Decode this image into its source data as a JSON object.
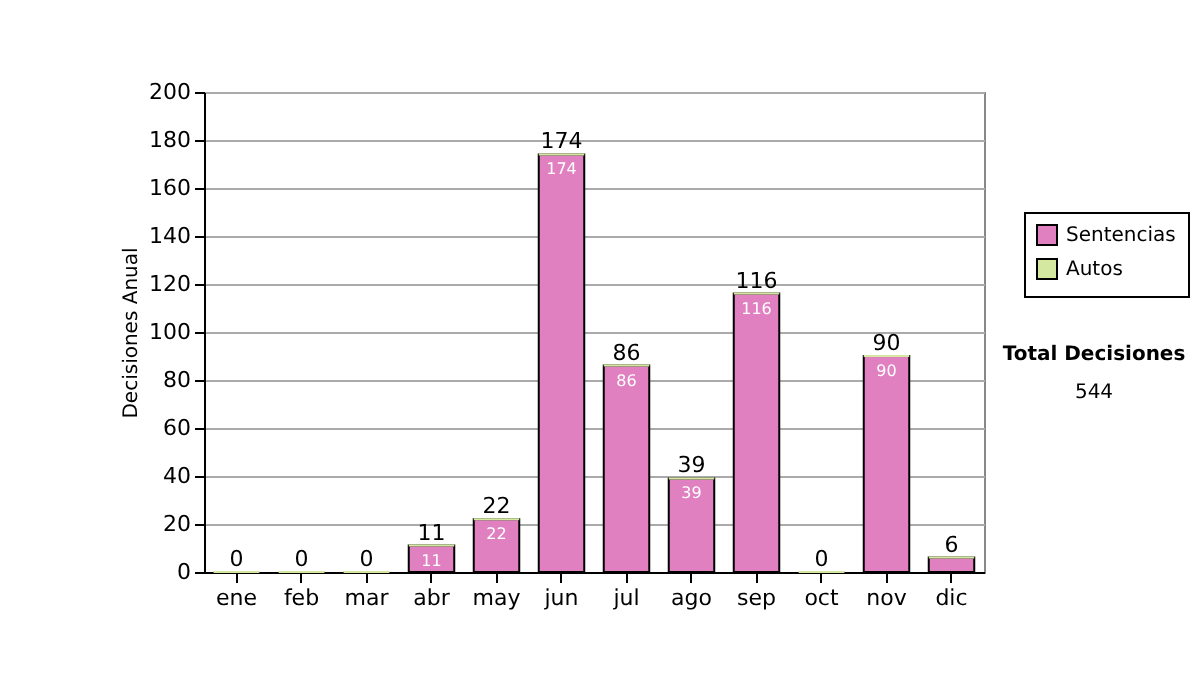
{
  "chart_data": {
    "type": "bar",
    "stacked": true,
    "ylabel": "Decisiones Anual",
    "categories": [
      "ene",
      "feb",
      "mar",
      "abr",
      "may",
      "jun",
      "jul",
      "ago",
      "sep",
      "oct",
      "nov",
      "dic"
    ],
    "series": [
      {
        "name": "Sentencias",
        "color": "#e080c0",
        "values": [
          0,
          0,
          0,
          11,
          22,
          174,
          86,
          39,
          116,
          0,
          90,
          6
        ],
        "value_labels": [
          null,
          null,
          null,
          "11",
          "22",
          "174",
          "86",
          "39",
          "116",
          null,
          "90",
          null
        ]
      },
      {
        "name": "Autos",
        "color": "#d4e8a0",
        "values": [
          0,
          0,
          0,
          0,
          0,
          0,
          0,
          0,
          0,
          0,
          0,
          0
        ]
      }
    ],
    "totals": [
      "0",
      "0",
      "0",
      "11",
      "22",
      "174",
      "86",
      "39",
      "116",
      "0",
      "90",
      "6"
    ],
    "ylim": [
      0,
      200
    ],
    "yticks": [
      0,
      20,
      40,
      60,
      80,
      100,
      120,
      140,
      160,
      180,
      200
    ],
    "grid": "y",
    "legend": "right",
    "annotations": [
      "Total Decisiones",
      "544"
    ]
  }
}
